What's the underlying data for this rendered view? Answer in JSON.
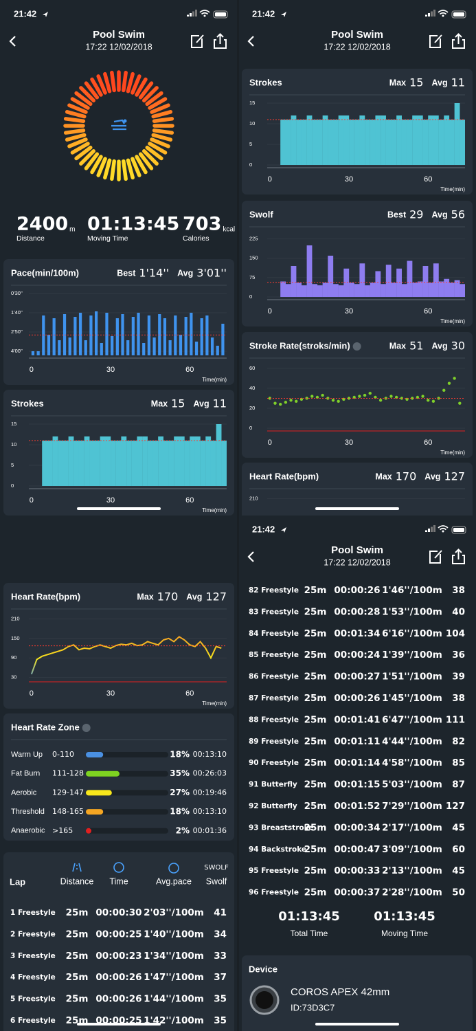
{
  "status_time": "21:42",
  "header": {
    "title": "Pool Swim",
    "subtitle": "17:22 12/02/2018"
  },
  "summary": [
    {
      "value": 2400,
      "unit": "m",
      "label": "Distance"
    },
    {
      "value": "01:13:45",
      "label": "Moving Time"
    },
    {
      "value": 703,
      "unit": "kcal",
      "label": "Calories"
    }
  ],
  "charts": {
    "pace": {
      "type": "bar",
      "title": "Pace(min/100m)",
      "color": "#3f93ee",
      "stat_color": "#4aa3ff",
      "y_inverted": true,
      "stats": [
        {
          "label": "Best",
          "value": {
            "value": 74,
            "label": "1'14''"
          }
        },
        {
          "label": "Avg",
          "value": {
            "value": 181,
            "label": "3'01''"
          }
        }
      ],
      "ylim": [
        30,
        255
      ],
      "yticks": [
        {
          "value": 30,
          "label": "0'30''"
        },
        {
          "value": 100,
          "label": "1'40''"
        },
        {
          "value": 170,
          "label": "2'50''"
        },
        {
          "value": 240,
          "label": "4'00''"
        }
      ],
      "xlim": [
        -1,
        74
      ],
      "xticks": [
        0,
        30,
        60
      ],
      "xlabel": "Time(min)",
      "x": [
        0,
        2,
        4,
        6,
        8,
        10,
        12,
        14,
        16,
        18,
        20,
        22,
        24,
        26,
        28,
        30,
        32,
        34,
        36,
        38,
        40,
        42,
        44,
        46,
        48,
        50,
        52,
        54,
        56,
        58,
        60,
        62,
        64,
        66,
        68,
        70,
        72
      ],
      "values": [
        240,
        240,
        110,
        180,
        120,
        200,
        105,
        190,
        115,
        100,
        200,
        110,
        95,
        210,
        100,
        185,
        120,
        105,
        200,
        115,
        100,
        210,
        110,
        190,
        105,
        120,
        200,
        110,
        180,
        115,
        100,
        205,
        120,
        110,
        190,
        220,
        140
      ]
    },
    "strokes": {
      "type": "bar",
      "title": "Strokes",
      "color": "#4fc3d3",
      "stat_color": "#4fc3d3",
      "stats": [
        {
          "label": "Max",
          "value": 15
        },
        {
          "label": "Avg",
          "value": 11
        }
      ],
      "ylim": [
        0,
        15
      ],
      "yticks": [
        0,
        5,
        10,
        15
      ],
      "xlim": [
        -1,
        74
      ],
      "xticks": [
        0,
        30,
        60
      ],
      "xlabel": "Time(min)",
      "x": [
        0,
        2,
        4,
        6,
        8,
        10,
        12,
        14,
        16,
        18,
        20,
        22,
        24,
        26,
        28,
        30,
        32,
        34,
        36,
        38,
        40,
        42,
        44,
        46,
        48,
        50,
        52,
        54,
        56,
        58,
        60,
        62,
        64,
        66,
        68,
        70,
        72
      ],
      "values": [
        0,
        0,
        11,
        11,
        12,
        11,
        11,
        12,
        11,
        11,
        12,
        11,
        11,
        12,
        12,
        11,
        11,
        12,
        11,
        11,
        12,
        12,
        11,
        11,
        12,
        11,
        11,
        12,
        12,
        11,
        12,
        12,
        11,
        12,
        11,
        15,
        11
      ]
    },
    "swolf": {
      "type": "bar",
      "title": "Swolf",
      "color": "#8e7df0",
      "stat_color": "#9d8dff",
      "stats": [
        {
          "label": "Best",
          "value": 29
        },
        {
          "label": "Avg",
          "value": 56
        }
      ],
      "ylim": [
        0,
        240
      ],
      "yticks": [
        0,
        75,
        150,
        225
      ],
      "xlim": [
        -1,
        74
      ],
      "xticks": [
        0,
        30,
        60
      ],
      "xlabel": "Time(min)",
      "x": [
        0,
        2,
        4,
        6,
        8,
        10,
        12,
        14,
        16,
        18,
        20,
        22,
        24,
        26,
        28,
        30,
        32,
        34,
        36,
        38,
        40,
        42,
        44,
        46,
        48,
        50,
        52,
        54,
        56,
        58,
        60,
        62,
        64,
        66,
        68,
        70,
        72
      ],
      "values": [
        0,
        0,
        60,
        50,
        120,
        55,
        45,
        200,
        50,
        45,
        55,
        160,
        50,
        45,
        110,
        55,
        50,
        130,
        45,
        55,
        100,
        50,
        125,
        55,
        110,
        50,
        140,
        55,
        60,
        120,
        55,
        130,
        60,
        70,
        55,
        65,
        50
      ]
    },
    "stroke_rate": {
      "type": "scatter",
      "title": "Stroke Rate(stroks/min)",
      "color": "#7fd02a",
      "stat_color": "#ff4d4d",
      "stats": [
        {
          "label": "Max",
          "value": 51
        },
        {
          "label": "Avg",
          "value": 30
        }
      ],
      "ylim": [
        0,
        62
      ],
      "yticks": [
        0,
        20,
        40,
        60
      ],
      "xlim": [
        -1,
        74
      ],
      "xticks": [
        0,
        30,
        60
      ],
      "xlabel": "Time(min)",
      "x": [
        0,
        2,
        4,
        6,
        8,
        10,
        12,
        14,
        16,
        18,
        20,
        22,
        24,
        26,
        28,
        30,
        32,
        34,
        36,
        38,
        40,
        42,
        44,
        46,
        48,
        50,
        52,
        54,
        56,
        58,
        60,
        62,
        64,
        66,
        68,
        70,
        72
      ],
      "values": [
        30,
        25,
        24,
        26,
        28,
        27,
        29,
        30,
        32,
        31,
        33,
        30,
        28,
        27,
        29,
        30,
        31,
        32,
        33,
        35,
        31,
        28,
        30,
        32,
        31,
        30,
        29,
        30,
        31,
        32,
        28,
        27,
        30,
        38,
        45,
        50,
        25
      ]
    },
    "heart_rate": {
      "type": "line",
      "title": "Heart Rate(bpm)",
      "color": "#f5a623",
      "stat_color": "#ff4d4d",
      "stats": [
        {
          "label": "Max",
          "value": 170
        },
        {
          "label": "Avg",
          "value": 127
        }
      ],
      "ylim": [
        25,
        215
      ],
      "yticks": [
        30,
        90,
        150,
        210
      ],
      "xlim": [
        -1,
        74
      ],
      "xticks": [
        0,
        30,
        60
      ],
      "xlabel": "Time(min)",
      "x": [
        0,
        2,
        4,
        6,
        8,
        10,
        12,
        14,
        16,
        18,
        20,
        22,
        24,
        26,
        28,
        30,
        32,
        34,
        36,
        38,
        40,
        42,
        44,
        46,
        48,
        50,
        52,
        54,
        56,
        58,
        60,
        62,
        64,
        66,
        68,
        70,
        72
      ],
      "values": [
        40,
        85,
        95,
        100,
        105,
        110,
        115,
        125,
        130,
        115,
        120,
        118,
        125,
        130,
        125,
        120,
        128,
        132,
        130,
        135,
        128,
        130,
        140,
        135,
        130,
        145,
        150,
        140,
        155,
        145,
        130,
        125,
        140,
        120,
        90,
        125,
        120
      ]
    }
  },
  "hr_zone": {
    "title": "Heart Rate Zone",
    "zones": [
      {
        "name": "Warm Up",
        "range": "0-110",
        "percent": 18,
        "percent_label": "18%",
        "time": "00:13:10",
        "color": "#4a90e2"
      },
      {
        "name": "Fat Burn",
        "range": "111-128",
        "percent": 35,
        "percent_label": "35%",
        "time": "00:26:03",
        "color": "#7ed321"
      },
      {
        "name": "Aerobic",
        "range": "129-147",
        "percent": 27,
        "percent_label": "27%",
        "time": "00:19:46",
        "color": "#f8e71c"
      },
      {
        "name": "Threshold",
        "range": "148-165",
        "percent": 18,
        "percent_label": "18%",
        "time": "00:13:10",
        "color": "#f5a623"
      },
      {
        "name": "Anaerobic",
        "range": ">165",
        "percent": 2,
        "percent_label": "2%",
        "time": "00:01:36",
        "color": "#e02020"
      }
    ]
  },
  "laps": {
    "columns": [
      "Lap",
      "Distance",
      "Time",
      "Avg.pace",
      "Swolf"
    ],
    "swolf_icon": "SWOLF",
    "rows": [
      [
        "1 Freestyle",
        "25m",
        "00:00:30",
        "2'03''/100m",
        41
      ],
      [
        "2 Freestyle",
        "25m",
        "00:00:25",
        "1'40''/100m",
        34
      ],
      [
        "3 Freestyle",
        "25m",
        "00:00:23",
        "1'34''/100m",
        33
      ],
      [
        "4 Freestyle",
        "25m",
        "00:00:26",
        "1'47''/100m",
        37
      ],
      [
        "5 Freestyle",
        "25m",
        "00:00:26",
        "1'44''/100m",
        35
      ],
      [
        "6 Freestyle",
        "25m",
        "00:00:25",
        "1'42''/100m",
        35
      ],
      [
        "82 Freestyle",
        "25m",
        "00:00:26",
        "1'46''/100m",
        38
      ],
      [
        "83 Freestyle",
        "25m",
        "00:00:28",
        "1'53''/100m",
        40
      ],
      [
        "84 Freestyle",
        "25m",
        "00:01:34",
        "6'16''/100m",
        104
      ],
      [
        "85 Freestyle",
        "25m",
        "00:00:24",
        "1'39''/100m",
        36
      ],
      [
        "86 Freestyle",
        "25m",
        "00:00:27",
        "1'51''/100m",
        39
      ],
      [
        "87 Freestyle",
        "25m",
        "00:00:26",
        "1'45''/100m",
        38
      ],
      [
        "88 Freestyle",
        "25m",
        "00:01:41",
        "6'47''/100m",
        111
      ],
      [
        "89 Freestyle",
        "25m",
        "00:01:11",
        "4'44''/100m",
        82
      ],
      [
        "90 Freestyle",
        "25m",
        "00:01:14",
        "4'58''/100m",
        85
      ],
      [
        "91 Butterfly",
        "25m",
        "00:01:15",
        "5'03''/100m",
        87
      ],
      [
        "92 Butterfly",
        "25m",
        "00:01:52",
        "7'29''/100m",
        127
      ],
      [
        "93 Breaststroke",
        "25m",
        "00:00:34",
        "2'17''/100m",
        45
      ],
      [
        "94 Backstroke",
        "25m",
        "00:00:47",
        "3'09''/100m",
        60
      ],
      [
        "95 Freestyle",
        "25m",
        "00:00:33",
        "2'13''/100m",
        45
      ],
      [
        "96 Freestyle",
        "25m",
        "00:00:37",
        "2'28''/100m",
        50
      ]
    ]
  },
  "totals": [
    {
      "value": "01:13:45",
      "label": "Total Time"
    },
    {
      "value": "01:13:45",
      "label": "Moving Time"
    }
  ],
  "device": {
    "title": "Device",
    "name": "COROS APEX 42mm",
    "id": "ID:73D3C7"
  }
}
